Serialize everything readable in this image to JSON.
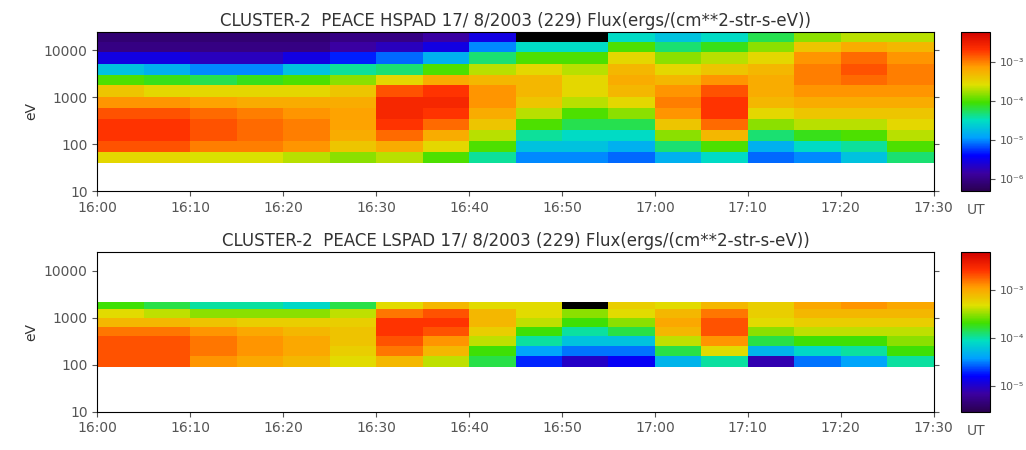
{
  "chart_data": [
    {
      "type": "heatmap",
      "title": "CLUSTER-2  PEACE HSPAD 17/ 8/2003 (229) Flux(ergs/(cm**2-str-s-eV))",
      "y_label": "eV",
      "x_label": "UT",
      "log": "y",
      "xlim": [
        0,
        90
      ],
      "xticks": [
        {
          "value": 0,
          "label": "16:00"
        },
        {
          "value": 10,
          "label": "16:10"
        },
        {
          "value": 20,
          "label": "16:20"
        },
        {
          "value": 30,
          "label": "16:30"
        },
        {
          "value": 40,
          "label": "16:40"
        },
        {
          "value": 50,
          "label": "16:50"
        },
        {
          "value": 60,
          "label": "17:00"
        },
        {
          "value": 70,
          "label": "17:10"
        },
        {
          "value": 80,
          "label": "17:20"
        },
        {
          "value": 90,
          "label": "17:30"
        }
      ],
      "ylim": [
        10,
        25000
      ],
      "yticks": [
        10,
        100,
        1000,
        10000
      ],
      "x_edges": [
        0,
        5,
        10,
        15,
        20,
        25,
        30,
        35,
        40,
        45,
        50,
        55,
        60,
        65,
        70,
        75,
        80,
        85,
        90
      ],
      "y_edges": [
        40,
        70,
        120,
        200,
        350,
        600,
        1000,
        1800,
        3000,
        5000,
        9000,
        15000,
        25000
      ],
      "flux": [
        [
          0.0003,
          0.0015,
          0.002,
          0.002,
          0.0015,
          0.0008,
          0.0004,
          0.0001,
          2e-05,
          3e-06,
          1e-06,
          8e-07
        ],
        [
          0.0003,
          0.0015,
          0.002,
          0.002,
          0.0015,
          0.0008,
          0.0003,
          8e-05,
          1.5e-05,
          3e-06,
          1e-06,
          8e-07
        ],
        [
          0.00025,
          0.001,
          0.0015,
          0.0015,
          0.0012,
          0.0007,
          0.0003,
          6e-05,
          1e-05,
          2e-06,
          1e-06,
          8e-07
        ],
        [
          0.00025,
          0.001,
          0.0012,
          0.0012,
          0.001,
          0.0006,
          0.0003,
          8e-05,
          1e-05,
          2e-06,
          1e-06,
          8e-07
        ],
        [
          0.0002,
          0.0008,
          0.001,
          0.001,
          0.0008,
          0.0006,
          0.0003,
          0.0001,
          2e-05,
          3e-06,
          1e-06,
          8e-07
        ],
        [
          0.00015,
          0.0004,
          0.0006,
          0.0007,
          0.0007,
          0.0006,
          0.0004,
          0.00015,
          4e-05,
          5e-06,
          1.5e-06,
          1e-06
        ],
        [
          0.0002,
          0.0006,
          0.0012,
          0.002,
          0.0025,
          0.0025,
          0.0015,
          0.0003,
          5e-05,
          8e-06,
          2e-06,
          1e-06
        ],
        [
          0.0001,
          0.0003,
          0.0006,
          0.0012,
          0.002,
          0.0025,
          0.002,
          0.0006,
          0.0001,
          1.5e-05,
          3e-06,
          1.5e-06
        ],
        [
          4e-05,
          0.0001,
          0.0002,
          0.0004,
          0.0006,
          0.0008,
          0.0008,
          0.0005,
          0.0002,
          5e-05,
          1e-05,
          3e-06
        ],
        [
          1e-05,
          2e-05,
          4e-05,
          0.0001,
          0.0002,
          0.0004,
          0.0005,
          0.0005,
          0.0003,
          0.0001,
          3e-05,
          3e-07
        ],
        [
          1e-05,
          2e-05,
          3e-05,
          6e-05,
          0.0001,
          0.0002,
          0.0003,
          0.0003,
          0.0002,
          0.0001,
          3e-05,
          3e-07
        ],
        [
          8e-06,
          1.5e-05,
          3e-05,
          6e-05,
          0.00015,
          0.0003,
          0.0005,
          0.0006,
          0.0005,
          0.0003,
          0.0001,
          3e-05
        ],
        [
          1.5e-05,
          5e-05,
          0.00015,
          0.0004,
          0.0008,
          0.001,
          0.0008,
          0.0005,
          0.0003,
          0.00015,
          5e-05,
          2e-05
        ],
        [
          3e-05,
          0.0001,
          0.0005,
          0.0012,
          0.002,
          0.002,
          0.0015,
          0.0008,
          0.0004,
          0.0002,
          8e-05,
          3e-05
        ],
        [
          8e-06,
          1.5e-05,
          5e-05,
          0.00015,
          0.0003,
          0.0005,
          0.0006,
          0.0006,
          0.0005,
          0.0003,
          0.00015,
          6e-05
        ],
        [
          1e-05,
          3e-05,
          8e-05,
          0.0002,
          0.0004,
          0.0006,
          0.0008,
          0.001,
          0.001,
          0.0008,
          0.0004,
          0.00015
        ],
        [
          2e-05,
          4e-05,
          0.0001,
          0.0002,
          0.0004,
          0.0006,
          0.0008,
          0.0012,
          0.0015,
          0.0012,
          0.0006,
          0.0002
        ],
        [
          5e-05,
          0.0001,
          0.0002,
          0.0003,
          0.0004,
          0.0006,
          0.0008,
          0.001,
          0.001,
          0.0008,
          0.0005,
          0.0002
        ]
      ],
      "colorbar_range": [
        5e-07,
        0.006
      ],
      "colorbar_ticks": [
        {
          "value": 1e-06,
          "label": "10⁻⁶"
        },
        {
          "value": 1e-05,
          "label": "10⁻⁵"
        },
        {
          "value": 0.0001,
          "label": "10⁻⁴"
        },
        {
          "value": 0.001,
          "label": "10⁻³"
        }
      ]
    },
    {
      "type": "heatmap",
      "title": "CLUSTER-2  PEACE LSPAD 17/ 8/2003 (229) Flux(ergs/(cm**2-str-s-eV))",
      "y_label": "eV",
      "x_label": "UT",
      "log": "y",
      "xlim": [
        0,
        90
      ],
      "xticks": [
        {
          "value": 0,
          "label": "16:00"
        },
        {
          "value": 10,
          "label": "16:10"
        },
        {
          "value": 20,
          "label": "16:20"
        },
        {
          "value": 30,
          "label": "16:30"
        },
        {
          "value": 40,
          "label": "16:40"
        },
        {
          "value": 50,
          "label": "16:50"
        },
        {
          "value": 60,
          "label": "17:00"
        },
        {
          "value": 70,
          "label": "17:10"
        },
        {
          "value": 80,
          "label": "17:20"
        },
        {
          "value": 90,
          "label": "17:30"
        }
      ],
      "ylim": [
        10,
        25000
      ],
      "yticks": [
        10,
        100,
        1000,
        10000
      ],
      "x_edges": [
        0,
        5,
        10,
        15,
        20,
        25,
        30,
        35,
        40,
        45,
        50,
        55,
        60,
        65,
        70,
        75,
        80,
        85,
        90
      ],
      "y_edges": [
        90,
        150,
        250,
        400,
        650,
        1000,
        1500,
        2200
      ],
      "flux": [
        [
          0.002,
          0.002,
          0.002,
          0.0015,
          0.0008,
          0.0005,
          0.0002
        ],
        [
          0.002,
          0.002,
          0.002,
          0.0015,
          0.0008,
          0.0004,
          0.00015
        ],
        [
          0.0012,
          0.0015,
          0.0015,
          0.0012,
          0.0007,
          0.0003,
          0.0001
        ],
        [
          0.001,
          0.0012,
          0.0012,
          0.001,
          0.0006,
          0.0003,
          0.0001
        ],
        [
          0.0008,
          0.001,
          0.001,
          0.0008,
          0.0006,
          0.0003,
          8e-05
        ],
        [
          0.0005,
          0.0006,
          0.0007,
          0.0007,
          0.0006,
          0.0004,
          0.00015
        ],
        [
          0.0008,
          0.0015,
          0.002,
          0.0025,
          0.0025,
          0.0015,
          0.0005
        ],
        [
          0.0004,
          0.0008,
          0.0012,
          0.002,
          0.0025,
          0.002,
          0.0008
        ],
        [
          0.00015,
          0.0002,
          0.0004,
          0.0006,
          0.0008,
          0.0008,
          0.0005
        ],
        [
          2e-05,
          4e-05,
          0.0001,
          0.0002,
          0.0004,
          0.0005,
          0.0005
        ],
        [
          1e-05,
          3e-05,
          6e-05,
          0.0001,
          0.0002,
          0.0003,
          2e-06
        ],
        [
          1.5e-05,
          3e-05,
          6e-05,
          0.00015,
          0.0003,
          0.0005,
          0.0006
        ],
        [
          5e-05,
          0.00015,
          0.0004,
          0.0008,
          0.001,
          0.0008,
          0.0005
        ],
        [
          0.0001,
          0.0005,
          0.0012,
          0.002,
          0.002,
          0.0015,
          0.0008
        ],
        [
          8e-06,
          5e-05,
          0.00015,
          0.0003,
          0.0005,
          0.0006,
          0.0006
        ],
        [
          3e-05,
          8e-05,
          0.0002,
          0.0004,
          0.0006,
          0.0008,
          0.001
        ],
        [
          4e-05,
          0.0001,
          0.0002,
          0.0004,
          0.0006,
          0.0008,
          0.0012
        ],
        [
          0.0001,
          0.0002,
          0.0003,
          0.0004,
          0.0006,
          0.0008,
          0.001
        ]
      ],
      "colorbar_range": [
        3e-06,
        0.006
      ],
      "colorbar_ticks": [
        {
          "value": 1e-05,
          "label": "10⁻⁵"
        },
        {
          "value": 0.0001,
          "label": "10⁻⁴"
        },
        {
          "value": 0.001,
          "label": "10⁻³"
        }
      ]
    }
  ]
}
